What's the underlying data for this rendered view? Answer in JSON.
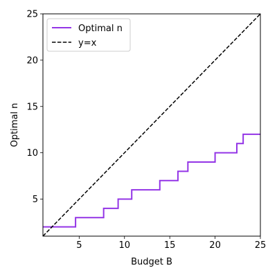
{
  "chart_data": {
    "type": "line",
    "xlabel": "Budget B",
    "ylabel": "Optimal n",
    "xlim": [
      1,
      25
    ],
    "ylim": [
      1,
      25
    ],
    "xticks": [
      5,
      10,
      15,
      20,
      25
    ],
    "yticks": [
      5,
      10,
      15,
      20,
      25
    ],
    "grid": false,
    "legend_position": "top-left",
    "series": [
      {
        "name": "Optimal n",
        "color": "#9334e6",
        "style": "step",
        "x": [
          1,
          4.6,
          4.6,
          7.7,
          7.7,
          9.3,
          9.3,
          10.8,
          10.8,
          13.9,
          13.9,
          15.9,
          15.9,
          17,
          17,
          20,
          20,
          22.4,
          22.4,
          23.1,
          23.1,
          25
        ],
        "y": [
          2,
          2,
          3,
          3,
          4,
          4,
          5,
          5,
          6,
          6,
          7,
          7,
          8,
          8,
          9,
          9,
          10,
          10,
          11,
          11,
          12,
          12
        ]
      },
      {
        "name": "y=x",
        "color": "#000000",
        "style": "dashed",
        "x": [
          1,
          25
        ],
        "y": [
          1,
          25
        ]
      }
    ]
  }
}
